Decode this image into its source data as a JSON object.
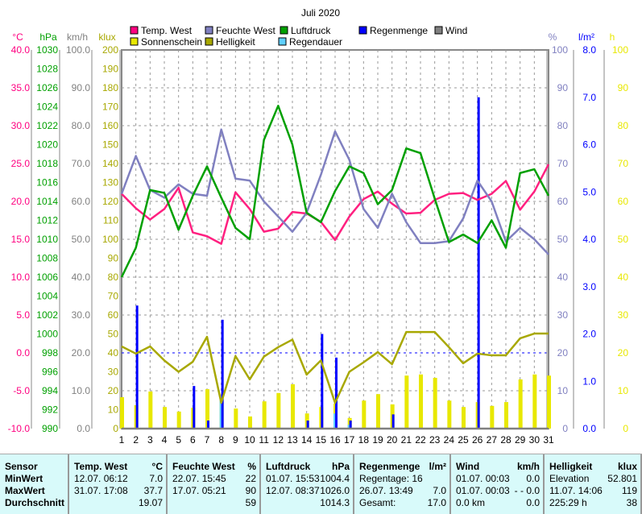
{
  "chart_data": {
    "type": "line",
    "title": "Juli 2020",
    "x": [
      1,
      2,
      3,
      4,
      5,
      6,
      7,
      8,
      9,
      10,
      11,
      12,
      13,
      14,
      15,
      16,
      17,
      18,
      19,
      20,
      21,
      22,
      23,
      24,
      25,
      26,
      27,
      28,
      29,
      30,
      31
    ],
    "legend": [
      {
        "name": "Temp. West",
        "color": "#ff0080"
      },
      {
        "name": "Feuchte West",
        "color": "#8080c0"
      },
      {
        "name": "Luftdruck",
        "color": "#00a000"
      },
      {
        "name": "Regenmenge",
        "color": "#0000ff"
      },
      {
        "name": "Wind",
        "color": "#808080"
      },
      {
        "name": "Sonnenschein",
        "color": "#e8e800"
      },
      {
        "name": "Helligkeit",
        "color": "#a8a800"
      },
      {
        "name": "Regendauer",
        "color": "#60d0ff"
      }
    ],
    "axes": {
      "temp": {
        "unit": "°C",
        "min": -10,
        "max": 40,
        "step": 5,
        "dec": 1,
        "color": "#ff0080"
      },
      "pressure": {
        "unit": "hPa",
        "min": 990,
        "max": 1030,
        "step": 2,
        "dec": 0,
        "color": "#00a000"
      },
      "wind": {
        "unit": "km/h",
        "min": 0,
        "max": 100,
        "step": 10,
        "dec": 1,
        "color": "#808080"
      },
      "lux": {
        "unit": "klux",
        "min": 0,
        "max": 200,
        "step": 10,
        "dec": 0,
        "color": "#a8a800"
      },
      "humidity": {
        "unit": "%",
        "min": 0,
        "max": 100,
        "step": 10,
        "dec": 0,
        "color": "#8080c0"
      },
      "rain": {
        "unit": "l/m²",
        "min": 0,
        "max": 8,
        "step": 1,
        "dec": 1,
        "color": "#0000ff"
      },
      "sun": {
        "unit": "h",
        "min": 0,
        "max": 100,
        "step": 10,
        "dec": 0,
        "color": "#e8e800"
      }
    },
    "series": [
      {
        "name": "Temp. West",
        "axis": "temp",
        "kind": "line",
        "color": "#ff2080",
        "values": [
          21,
          19.1,
          17.6,
          19,
          21.8,
          15.9,
          15.4,
          14.4,
          21.2,
          19,
          16,
          16.4,
          18.6,
          18.4,
          17.3,
          14.9,
          18,
          20.3,
          21.3,
          19.7,
          18.4,
          18.5,
          20.2,
          21,
          21.1,
          20.2,
          21,
          22.7,
          18.9,
          21.3,
          24.9
        ]
      },
      {
        "name": "Feuchte West",
        "axis": "humidity",
        "kind": "line",
        "color": "#8080c0",
        "values": [
          62,
          72,
          63,
          61,
          64.5,
          62,
          61.5,
          79,
          66,
          65.5,
          60,
          56,
          52,
          57,
          67,
          78.5,
          71,
          58,
          53,
          62,
          54.5,
          49,
          49,
          49.5,
          55.5,
          65.5,
          60,
          49.4,
          53,
          50,
          46
        ]
      },
      {
        "name": "Luftdruck",
        "axis": "pressure",
        "kind": "line",
        "color": "#00a000",
        "values": [
          1006,
          1009.1,
          1015.2,
          1014.9,
          1011,
          1014.6,
          1017.7,
          1014.4,
          1011.2,
          1010,
          1020.5,
          1024.1,
          1020,
          1012.8,
          1011.8,
          1015.1,
          1017.7,
          1017,
          1013.7,
          1015.2,
          1019.6,
          1019.1,
          1014.3,
          1009.7,
          1010.5,
          1009.6,
          1012,
          1009.1,
          1017,
          1017.4,
          1014.6
        ]
      },
      {
        "name": "Helligkeit",
        "axis": "lux",
        "kind": "line",
        "color": "#a8a800",
        "values": [
          43.4,
          39.6,
          43.4,
          36,
          30,
          35.3,
          48.5,
          13.6,
          38.3,
          26,
          38,
          43,
          47,
          28.5,
          36,
          13.6,
          30,
          35,
          40.4,
          34,
          51,
          51,
          51,
          43,
          34.5,
          39.6,
          38.7,
          38.7,
          47.7,
          50.2,
          50.2
        ]
      },
      {
        "name": "Sonnenschein",
        "axis": "sun",
        "kind": "bar",
        "color": "#e8e800",
        "values": [
          8.3,
          6.2,
          9.8,
          5.7,
          4.5,
          5.5,
          10.4,
          7.4,
          5.3,
          3.2,
          7.2,
          9.4,
          11.7,
          4,
          5.7,
          6.6,
          2.8,
          7.4,
          9.1,
          6.4,
          14,
          14.3,
          13.4,
          7.4,
          5.7,
          7,
          6,
          7,
          13,
          14.3,
          14
        ]
      },
      {
        "name": "Regendauer",
        "axis": "sun",
        "kind": "bar2",
        "color": "#60d0ff",
        "values": [
          0,
          0,
          0,
          0,
          0,
          0,
          0,
          7.5,
          0,
          0,
          0,
          0,
          0,
          0,
          0,
          4,
          1,
          0,
          0,
          0,
          0,
          0,
          0,
          0,
          0,
          0,
          0,
          0,
          0,
          0,
          0
        ]
      },
      {
        "name": "Regenmenge",
        "axis": "rain",
        "kind": "bar3",
        "color": "#0000ff",
        "values": [
          0,
          2.6,
          0,
          0,
          0,
          0.9,
          0.17,
          2.3,
          0,
          0,
          0,
          0,
          0,
          0.17,
          2.0,
          1.5,
          0.17,
          0,
          0,
          0.3,
          0,
          0,
          0,
          0,
          0,
          7.0,
          0,
          0,
          0,
          0,
          0
        ]
      },
      {
        "name": "Wind",
        "axis": "wind",
        "kind": "line",
        "color": "#808080",
        "values": [
          0,
          0,
          0,
          0,
          0,
          0,
          0,
          0,
          0,
          0,
          0,
          0,
          0,
          0,
          0,
          0,
          0,
          0,
          0,
          0,
          0,
          0,
          0,
          0,
          0,
          0,
          0,
          0,
          0,
          0,
          0
        ]
      }
    ]
  },
  "stats": {
    "sensor": {
      "h": "Sensor",
      "r1": "MinWert",
      "r2": "MaxWert",
      "r3": "Durchschnitt"
    },
    "temp": {
      "h": "Temp. West",
      "u": "°C",
      "r1": [
        "12.07.  06:12",
        "7.0"
      ],
      "r2": [
        "31.07.  17:08",
        "37.7"
      ],
      "r3": [
        "",
        "19.07"
      ]
    },
    "hum": {
      "h": "Feuchte West",
      "u": "%",
      "r1": [
        "22.07.  15:45",
        "22"
      ],
      "r2": [
        "17.07.  05:21",
        "90"
      ],
      "r3": [
        "",
        "59"
      ]
    },
    "press": {
      "h": "Luftdruck",
      "u": "hPa",
      "r1": [
        "01.07.  15:53",
        "1004.4"
      ],
      "r2": [
        "12.07.  08:37",
        "1026.0"
      ],
      "r3": [
        "",
        "1014.3"
      ]
    },
    "rain": {
      "h": "Regenmenge",
      "u": "l/m²",
      "r1": [
        "Regentage: 16",
        ""
      ],
      "r2": [
        "26.07.  13:49",
        "7.0"
      ],
      "r3": [
        "Gesamt:",
        "17.0"
      ]
    },
    "wind": {
      "h": "Wind",
      "u": "km/h",
      "r1": [
        "01.07.  00:03",
        "0.0"
      ],
      "r2": [
        "01.07.  00:03",
        "- - 0.0"
      ],
      "r3": [
        "0.0 km",
        "0.0"
      ]
    },
    "lux": {
      "h": "Helligkeit",
      "u": "klux",
      "r1": [
        "Elevation",
        "52.801"
      ],
      "r2": [
        "11.07.  14:06",
        "119"
      ],
      "r3": [
        "225:29 h",
        "38"
      ]
    }
  }
}
